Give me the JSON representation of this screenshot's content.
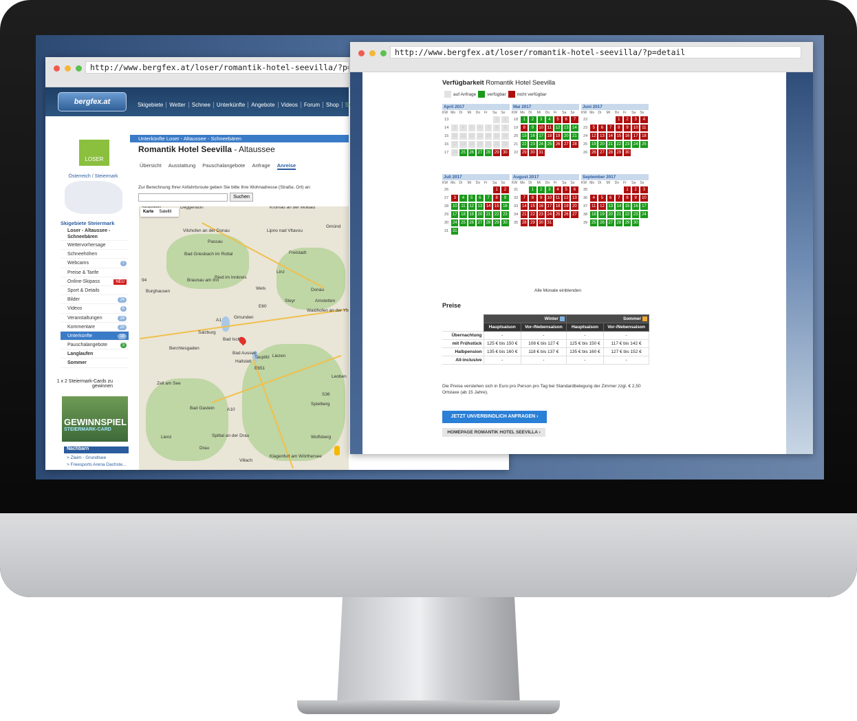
{
  "left_window": {
    "url": "http://www.bergfex.at/loser/romantik-hotel-seevilla/?p=map",
    "logo": "bergfex.at",
    "nav": [
      "Skigebiete",
      "Wetter",
      "Schnee",
      "Unterkünfte",
      "Angebote",
      "Videos",
      "Forum",
      "Shop",
      "Somme"
    ],
    "region_logo": "LOSER",
    "region": "Österreich / Steiermark",
    "sidebar_heading": "Skigebiete Steiermark",
    "sidebar": [
      {
        "label": "Loser - Altaussee - Schneebären",
        "bold": true
      },
      {
        "label": "Wettervorhersage"
      },
      {
        "label": "Schneehöhen"
      },
      {
        "label": "Webcams",
        "count": "7"
      },
      {
        "label": "Preise & Tarife"
      },
      {
        "label": "Online-Skipass",
        "count": "NEU"
      },
      {
        "label": "Sport & Details"
      },
      {
        "label": "Bilder",
        "count": "24"
      },
      {
        "label": "Videos",
        "count": "6"
      },
      {
        "label": "Veranstaltungen",
        "count": "28"
      },
      {
        "label": "Kommentare",
        "count": "20"
      },
      {
        "label": "Unterkünfte",
        "count": "18",
        "active": true
      },
      {
        "label": "Pauschalangebote",
        "count": "3"
      },
      {
        "label": "Langlaufen",
        "bold": true
      },
      {
        "label": "Sommer",
        "bold": true
      }
    ],
    "promo_title": "1 x 2 Steiermark-Cards zu gewinnen",
    "promo_img": "GEWINNSPIEL",
    "promo_img_sub": "STEIERMARK-CARD",
    "nachbarn_title": "Nachbarn",
    "nachbarn": [
      "> Zlaim - Grundlsee",
      "> Freesports Arena Dachste..."
    ],
    "breadcrumb": "Unterkünfte Loser - Altaussee - Schneebären",
    "hotel_name": "Romantik Hotel Seevilla",
    "hotel_place": " - Altaussee",
    "tabs": [
      "Übersicht",
      "Ausstattung",
      "Pauschalangebote",
      "Anfrage",
      "Anreise"
    ],
    "route_label": "Zur Berechnung Ihrer Anfahrtsroute geben Sie bitte Ihre Wohnadresse (Straße, Ort) an:",
    "route_button": "Suchen",
    "map_tabs": [
      "Karte",
      "Satellit"
    ],
    "map_labels": [
      "Straubing",
      "Deggendorf",
      "Krumau an der Moldau",
      "Vilshofen an der Donau",
      "Passau",
      "Lipno nad Vltavou",
      "Gmünd",
      "Bad Griesbach im Rottal",
      "Freistadt",
      "Braunau am Inn",
      "Ried im Innkreis",
      "Linz",
      "Burghausen",
      "Wels",
      "Steyr",
      "Amstetten",
      "Waidhofen an der Ybbs",
      "Gmunden",
      "Salzburg",
      "Bad Ischl",
      "Bad Aussee",
      "Hallstatt",
      "Tauplitz",
      "Liezen",
      "Berchtesgaden",
      "Leoben",
      "Zell am See",
      "Bad Gastein",
      "Spielberg",
      "Wolfsberg",
      "Lienz",
      "Spittal an der Drau",
      "Klagenfurt am Wörthersee",
      "Villach",
      "Drau",
      "Donau",
      "94",
      "E60",
      "A1",
      "A10",
      "S36",
      "E651"
    ]
  },
  "right_window": {
    "url": "http://www.bergfex.at/loser/romantik-hotel-seevilla/?p=detail",
    "avail_bold": "Verfügbarkeit",
    "avail_name": " Romantik Hotel Seevilla",
    "legend": [
      "auf Anfrage",
      "verfügbar",
      "nicht verfügbar"
    ],
    "colors": {
      "available": "#1a9a1a",
      "unavailable": "#b00e0e",
      "on_request": "#e2e2e2"
    },
    "weekdays": [
      "KW",
      "Mo",
      "Di",
      "Mi",
      "Do",
      "Fr",
      "Sa",
      "So"
    ],
    "months": [
      {
        "name": "April 2017",
        "weeks": [
          {
            "kw": "13",
            "days": [
              "",
              "",
              "",
              "",
              "",
              "1",
              "2"
            ],
            "states": [
              "",
              "",
              "",
              "",
              "",
              "a",
              "a"
            ]
          },
          {
            "kw": "14",
            "days": [
              "3",
              "4",
              "5",
              "6",
              "7",
              "8",
              "9"
            ],
            "states": [
              "a",
              "a",
              "a",
              "a",
              "a",
              "a",
              "a"
            ]
          },
          {
            "kw": "15",
            "days": [
              "10",
              "11",
              "12",
              "13",
              "14",
              "15",
              "16"
            ],
            "states": [
              "a",
              "a",
              "a",
              "a",
              "a",
              "a",
              "a"
            ]
          },
          {
            "kw": "16",
            "days": [
              "17",
              "18",
              "19",
              "20",
              "21",
              "22",
              "23"
            ],
            "states": [
              "a",
              "a",
              "a",
              "a",
              "a",
              "a",
              "a"
            ]
          },
          {
            "kw": "17",
            "days": [
              "24",
              "25",
              "26",
              "27",
              "28",
              "29",
              "30"
            ],
            "states": [
              "a",
              "g",
              "g",
              "g",
              "g",
              "r",
              "r"
            ]
          }
        ]
      },
      {
        "name": "Mai 2017",
        "weeks": [
          {
            "kw": "18",
            "days": [
              "1",
              "2",
              "3",
              "4",
              "5",
              "6",
              "7"
            ],
            "states": [
              "g",
              "g",
              "g",
              "g",
              "r",
              "r",
              "r"
            ]
          },
          {
            "kw": "19",
            "days": [
              "8",
              "9",
              "10",
              "11",
              "12",
              "13",
              "14"
            ],
            "states": [
              "r",
              "g",
              "r",
              "r",
              "g",
              "g",
              "g"
            ]
          },
          {
            "kw": "20",
            "days": [
              "15",
              "16",
              "17",
              "18",
              "19",
              "20",
              "21"
            ],
            "states": [
              "g",
              "g",
              "g",
              "r",
              "r",
              "g",
              "g"
            ]
          },
          {
            "kw": "21",
            "days": [
              "22",
              "23",
              "24",
              "25",
              "26",
              "27",
              "28"
            ],
            "states": [
              "g",
              "g",
              "g",
              "g",
              "r",
              "r",
              "r"
            ]
          },
          {
            "kw": "22",
            "days": [
              "29",
              "30",
              "31",
              "",
              "",
              "",
              ""
            ],
            "states": [
              "r",
              "r",
              "r",
              "",
              "",
              "",
              ""
            ]
          }
        ]
      },
      {
        "name": "Juni 2017",
        "weeks": [
          {
            "kw": "22",
            "days": [
              "",
              "",
              "",
              "1",
              "2",
              "3",
              "4"
            ],
            "states": [
              "",
              "",
              "",
              "r",
              "r",
              "r",
              "r"
            ]
          },
          {
            "kw": "23",
            "days": [
              "5",
              "6",
              "7",
              "8",
              "9",
              "10",
              "11"
            ],
            "states": [
              "r",
              "r",
              "r",
              "r",
              "r",
              "r",
              "r"
            ]
          },
          {
            "kw": "24",
            "days": [
              "12",
              "13",
              "14",
              "15",
              "16",
              "17",
              "18"
            ],
            "states": [
              "r",
              "r",
              "r",
              "r",
              "r",
              "r",
              "r"
            ]
          },
          {
            "kw": "25",
            "days": [
              "19",
              "20",
              "21",
              "22",
              "23",
              "24",
              "25"
            ],
            "states": [
              "g",
              "g",
              "g",
              "g",
              "g",
              "g",
              "g"
            ]
          },
          {
            "kw": "26",
            "days": [
              "26",
              "27",
              "28",
              "29",
              "30",
              "",
              ""
            ],
            "states": [
              "r",
              "r",
              "r",
              "r",
              "r",
              "",
              ""
            ]
          }
        ]
      },
      {
        "name": "Juli 2017",
        "weeks": [
          {
            "kw": "26",
            "days": [
              "",
              "",
              "",
              "",
              "",
              "1",
              "2"
            ],
            "states": [
              "",
              "",
              "",
              "",
              "",
              "r",
              "r"
            ]
          },
          {
            "kw": "27",
            "days": [
              "3",
              "4",
              "5",
              "6",
              "7",
              "8",
              "9"
            ],
            "states": [
              "r",
              "g",
              "g",
              "g",
              "g",
              "r",
              "g"
            ]
          },
          {
            "kw": "28",
            "days": [
              "10",
              "11",
              "12",
              "13",
              "14",
              "15",
              "16"
            ],
            "states": [
              "g",
              "g",
              "g",
              "g",
              "r",
              "r",
              "g"
            ]
          },
          {
            "kw": "29",
            "days": [
              "17",
              "18",
              "19",
              "20",
              "21",
              "22",
              "23"
            ],
            "states": [
              "g",
              "g",
              "g",
              "g",
              "g",
              "g",
              "g"
            ]
          },
          {
            "kw": "30",
            "days": [
              "24",
              "25",
              "26",
              "27",
              "28",
              "29",
              "30"
            ],
            "states": [
              "g",
              "g",
              "g",
              "g",
              "g",
              "g",
              "g"
            ]
          },
          {
            "kw": "31",
            "days": [
              "31",
              "",
              "",
              "",
              "",
              "",
              ""
            ],
            "states": [
              "g",
              "",
              "",
              "",
              "",
              "",
              ""
            ]
          }
        ]
      },
      {
        "name": "August 2017",
        "weeks": [
          {
            "kw": "31",
            "days": [
              "",
              "1",
              "2",
              "3",
              "4",
              "5",
              "6"
            ],
            "states": [
              "",
              "g",
              "g",
              "g",
              "r",
              "r",
              "r"
            ]
          },
          {
            "kw": "32",
            "days": [
              "7",
              "8",
              "9",
              "10",
              "11",
              "12",
              "13"
            ],
            "states": [
              "r",
              "r",
              "r",
              "r",
              "r",
              "r",
              "r"
            ]
          },
          {
            "kw": "33",
            "days": [
              "14",
              "15",
              "16",
              "17",
              "18",
              "19",
              "20"
            ],
            "states": [
              "r",
              "r",
              "r",
              "r",
              "r",
              "r",
              "r"
            ]
          },
          {
            "kw": "34",
            "days": [
              "21",
              "22",
              "23",
              "24",
              "25",
              "26",
              "27"
            ],
            "states": [
              "r",
              "r",
              "r",
              "r",
              "r",
              "r",
              "r"
            ]
          },
          {
            "kw": "35",
            "days": [
              "28",
              "29",
              "30",
              "31",
              "",
              "",
              ""
            ],
            "states": [
              "r",
              "r",
              "r",
              "r",
              "",
              "",
              ""
            ]
          }
        ]
      },
      {
        "name": "September 2017",
        "weeks": [
          {
            "kw": "35",
            "days": [
              "",
              "",
              "",
              "",
              "1",
              "2",
              "3"
            ],
            "states": [
              "",
              "",
              "",
              "",
              "r",
              "r",
              "r"
            ]
          },
          {
            "kw": "36",
            "days": [
              "4",
              "5",
              "6",
              "7",
              "8",
              "9",
              "10"
            ],
            "states": [
              "r",
              "r",
              "r",
              "r",
              "r",
              "r",
              "r"
            ]
          },
          {
            "kw": "37",
            "days": [
              "11",
              "12",
              "13",
              "14",
              "15",
              "16",
              "17"
            ],
            "states": [
              "r",
              "r",
              "g",
              "g",
              "g",
              "g",
              "g"
            ]
          },
          {
            "kw": "38",
            "days": [
              "18",
              "19",
              "20",
              "21",
              "22",
              "23",
              "24"
            ],
            "states": [
              "g",
              "g",
              "g",
              "g",
              "g",
              "g",
              "g"
            ]
          },
          {
            "kw": "39",
            "days": [
              "25",
              "26",
              "27",
              "28",
              "29",
              "30",
              ""
            ],
            "states": [
              "g",
              "g",
              "g",
              "g",
              "g",
              "g",
              ""
            ]
          }
        ]
      }
    ],
    "all_months": "Alle Monate einblenden",
    "prices_title": "Preise",
    "season_winter": "Winter",
    "season_summer": "Sommer",
    "col_headers": [
      "Hauptsaison",
      "Vor-/Nebensaison",
      "Hauptsaison",
      "Vor-/Nebensaison"
    ],
    "price_rows": [
      {
        "label": "Übernachtung",
        "values": [
          "-",
          "-",
          "-",
          "-"
        ]
      },
      {
        "label": "mit Frühstück",
        "values": [
          "125 € bis 150 €",
          "108 € bis 127 €",
          "125 € bis 150 €",
          "117 € bis 142 €"
        ]
      },
      {
        "label": "Halbpension",
        "values": [
          "135 € bis 160 €",
          "118 € bis 137 €",
          "135 € bis 160 €",
          "127 € bis 152 €"
        ]
      },
      {
        "label": "All-inclusive",
        "values": [
          "-",
          "-",
          "-",
          "-"
        ]
      }
    ],
    "price_note": "Die Preise verstehen sich in Euro pro Person pro Tag bei Standardbelegung der Zimmer zzgl. € 2,50 Ortstaxe (ab 15 Jahre).",
    "btn_inquiry": "JETZT UNVERBINDLICH ANFRAGEN ›",
    "btn_homepage": "HOMEPAGE ROMANTIK HOTEL SEEVILLA ›"
  }
}
